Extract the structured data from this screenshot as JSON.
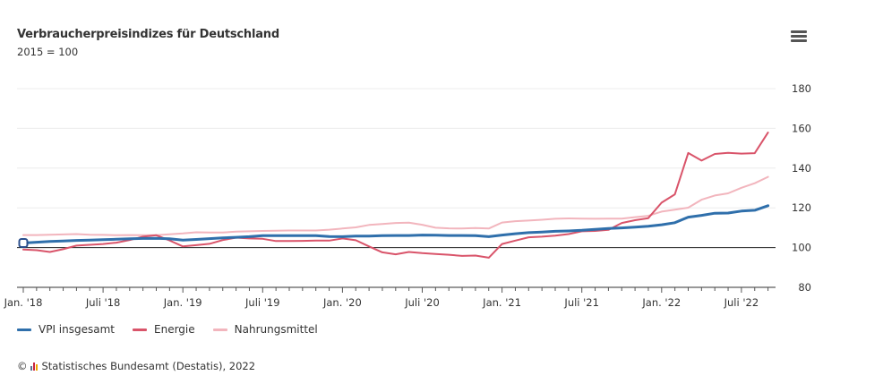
{
  "header": {
    "title": "Verbraucherpreisindizes für Deutschland",
    "subtitle": "2015 = 100",
    "menu_icon": "hamburger-menu-icon"
  },
  "legend": [
    {
      "label": "VPI insgesamt",
      "color": "#2f6fab"
    },
    {
      "label": "Energie",
      "color": "#d9546a"
    },
    {
      "label": "Nahrungsmittel",
      "color": "#f2b5bd"
    }
  ],
  "credits": {
    "copyright_symbol": "©",
    "text": "Statistisches Bundesamt (Destatis), 2022"
  },
  "chart_data": {
    "type": "line",
    "title": "Verbraucherpreisindizes für Deutschland",
    "subtitle": "2015 = 100",
    "xlabel": "",
    "ylabel": "",
    "ylim": [
      80,
      180
    ],
    "yticks": [
      80,
      100,
      120,
      140,
      160,
      180
    ],
    "y_axis_side": "right",
    "baseline": 100,
    "grid": true,
    "legend_position": "bottom-left",
    "x_start": "2018-01",
    "x_end": "2022-09",
    "x_tick_labels": [
      {
        "month_index": 0,
        "label": "Jan. '18"
      },
      {
        "month_index": 6,
        "label": "Juli '18"
      },
      {
        "month_index": 12,
        "label": "Jan. '19"
      },
      {
        "month_index": 18,
        "label": "Juli '19"
      },
      {
        "month_index": 24,
        "label": "Jan. '20"
      },
      {
        "month_index": 30,
        "label": "Juli '20"
      },
      {
        "month_index": 36,
        "label": "Jan. '21"
      },
      {
        "month_index": 42,
        "label": "Juli '21"
      },
      {
        "month_index": 48,
        "label": "Jan. '22"
      },
      {
        "month_index": 54,
        "label": "Juli '22"
      }
    ],
    "series": [
      {
        "name": "VPI insgesamt",
        "color": "#2f6fab",
        "values": [
          102.3,
          102.7,
          103.1,
          103.3,
          103.6,
          103.8,
          104.0,
          104.2,
          104.4,
          104.6,
          104.7,
          104.4,
          103.8,
          104.1,
          104.5,
          104.9,
          105.2,
          105.5,
          106.0,
          106.0,
          106.0,
          106.0,
          106.0,
          105.6,
          105.5,
          105.8,
          105.8,
          106.0,
          106.1,
          106.1,
          106.3,
          106.2,
          106.1,
          106.1,
          106.0,
          105.5,
          106.3,
          107.0,
          107.5,
          107.8,
          108.2,
          108.4,
          108.7,
          109.2,
          109.6,
          109.9,
          110.3,
          110.7,
          111.5,
          112.5,
          115.3,
          116.2,
          117.3,
          117.4,
          118.4,
          118.8,
          121.1
        ]
      },
      {
        "name": "Energie",
        "color": "#d9546a",
        "values": [
          99.0,
          98.7,
          97.8,
          99.2,
          101.0,
          101.4,
          101.8,
          102.5,
          103.8,
          105.5,
          106.2,
          103.6,
          100.6,
          101.2,
          101.9,
          103.8,
          105.0,
          104.6,
          104.4,
          103.3,
          103.3,
          103.4,
          103.5,
          103.5,
          104.6,
          103.7,
          100.6,
          97.6,
          96.6,
          97.8,
          97.2,
          96.8,
          96.4,
          95.8,
          96.0,
          94.9,
          101.8,
          103.5,
          105.2,
          105.5,
          106.0,
          106.8,
          108.2,
          108.4,
          108.9,
          112.4,
          113.8,
          114.8,
          122.6,
          126.8,
          147.6,
          143.8,
          147.1,
          147.7,
          147.3,
          147.5,
          157.9
        ]
      },
      {
        "name": "Nahrungsmittel",
        "color": "#f2b5bd",
        "values": [
          106.3,
          106.3,
          106.5,
          106.6,
          106.8,
          106.5,
          106.4,
          106.2,
          106.3,
          106.2,
          106.2,
          106.7,
          107.1,
          107.7,
          107.6,
          107.6,
          108.0,
          108.2,
          108.4,
          108.5,
          108.6,
          108.6,
          108.6,
          109.0,
          109.6,
          110.2,
          111.4,
          111.9,
          112.4,
          112.5,
          111.5,
          110.0,
          109.7,
          109.6,
          109.8,
          109.6,
          112.6,
          113.3,
          113.6,
          114.0,
          114.5,
          114.7,
          114.6,
          114.5,
          114.6,
          114.6,
          115.3,
          116.0,
          118.1,
          119.1,
          120.1,
          124.1,
          126.2,
          127.3,
          130.1,
          132.4,
          135.6
        ]
      }
    ],
    "start_marker": {
      "series": "VPI insgesamt",
      "month_index": 0,
      "shape": "rounded-square"
    }
  }
}
